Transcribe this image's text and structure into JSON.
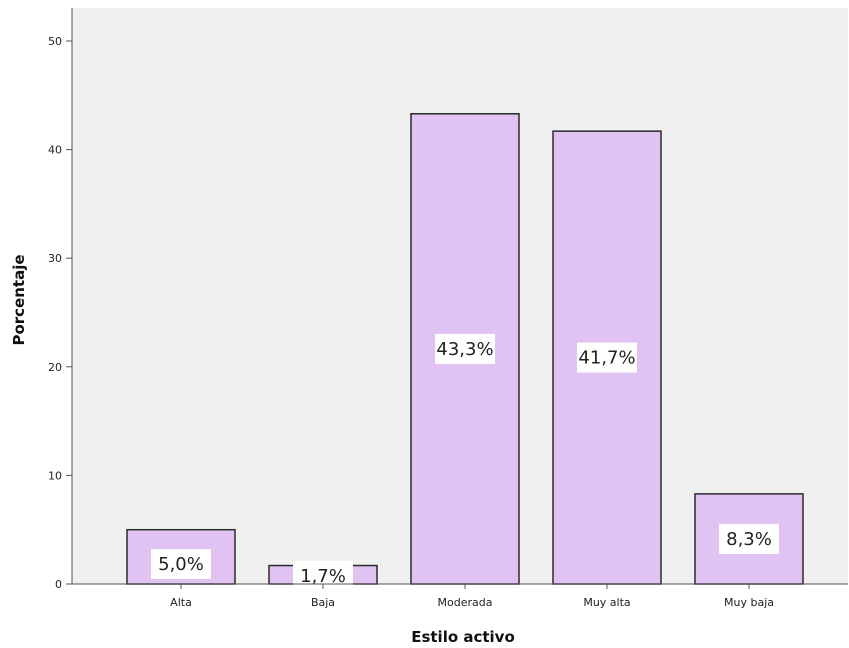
{
  "chart_data": {
    "type": "bar",
    "title": "",
    "xlabel": "Estilo activo",
    "ylabel": "Porcentaje",
    "categories": [
      "Alta",
      "Baja",
      "Moderada",
      "Muy alta",
      "Muy baja"
    ],
    "values": [
      5.0,
      1.7,
      43.3,
      41.7,
      8.3
    ],
    "data_labels": [
      "5,0%",
      "1,7%",
      "43,3%",
      "41,7%",
      "8,3%"
    ],
    "ylim": [
      0,
      50
    ],
    "y_ticks": [
      0,
      10,
      20,
      30,
      40,
      50
    ],
    "y_tick_labels": [
      "0",
      "10",
      "20",
      "30",
      "40",
      "50"
    ],
    "grid": false,
    "legend": "none",
    "colors": {
      "bar_fill": "#e1c3f3",
      "bar_stroke": "#2a2a2a",
      "plot_background": "#f0f0f0",
      "axis": "#555555",
      "label_box": "#ffffff"
    }
  }
}
